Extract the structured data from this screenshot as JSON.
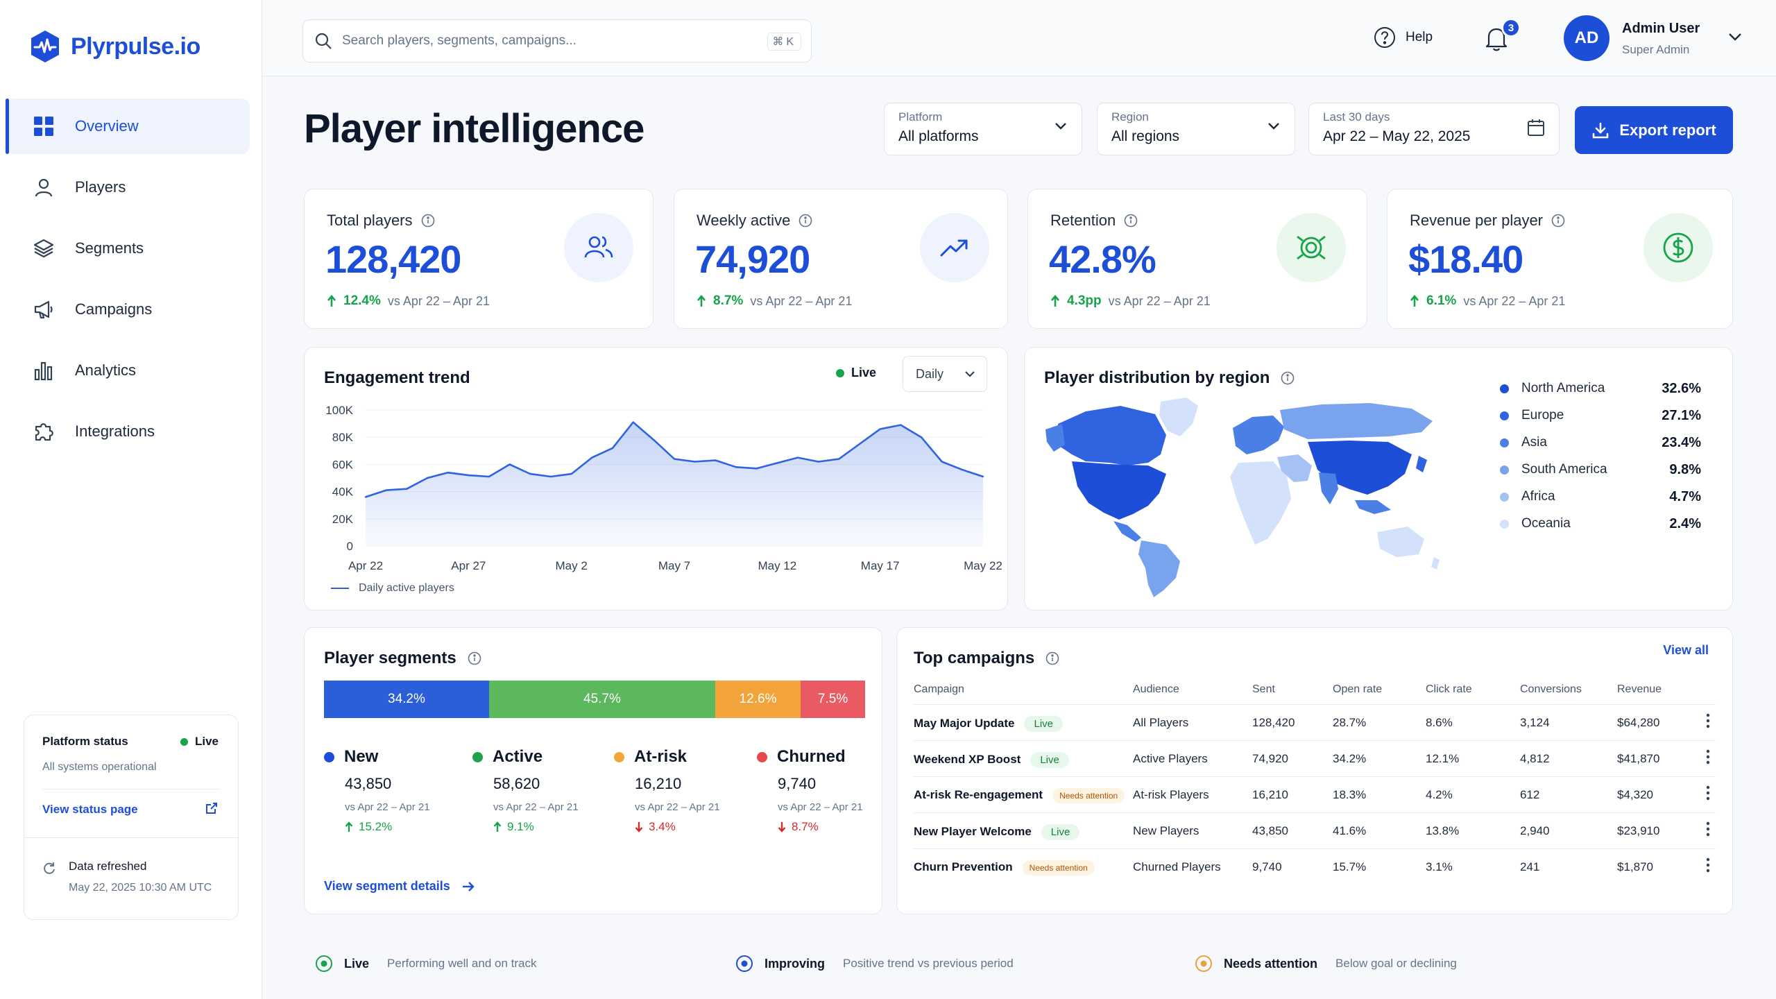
{
  "brand": {
    "name": "Plyrpulse.io",
    "accent": "#1d4ed8"
  },
  "sidebar": {
    "items": [
      {
        "label": "Overview",
        "icon": "grid-icon",
        "active": true
      },
      {
        "label": "Players",
        "icon": "user-icon"
      },
      {
        "label": "Segments",
        "icon": "layers-icon"
      },
      {
        "label": "Campaigns",
        "icon": "megaphone-icon"
      },
      {
        "label": "Analytics",
        "icon": "bar-chart-icon"
      },
      {
        "label": "Integrations",
        "icon": "puzzle-icon"
      }
    ],
    "status": {
      "title": "Platform status",
      "state": "Live",
      "subtitle": "All systems operational",
      "link": "View status page",
      "refreshed_title": "Data refreshed",
      "refreshed_time": "May 22, 2025 10:30 AM UTC"
    }
  },
  "topbar": {
    "search_placeholder": "Search players, segments, campaigns...",
    "shortcut": "⌘K",
    "help": "Help",
    "notifications": "3",
    "user": {
      "initials": "AD",
      "name": "Admin User",
      "role": "Super Admin"
    }
  },
  "header": {
    "title": "Player intelligence",
    "filters": [
      {
        "label": "Platform",
        "value": "All platforms"
      },
      {
        "label": "Region",
        "value": "All regions"
      },
      {
        "label": "Last 30 days",
        "value": "Apr 22 – May 22, 2025"
      }
    ],
    "export": "Export report"
  },
  "kpis": [
    {
      "title": "Total players",
      "value": "128,420",
      "delta": "12.4%",
      "compare": "vs Apr 22 – Apr 21",
      "icon": "users-icon"
    },
    {
      "title": "Weekly active",
      "value": "74,920",
      "delta": "8.7%",
      "compare": "vs Apr 22 – Apr 21",
      "icon": "trend-up-icon"
    },
    {
      "title": "Retention",
      "value": "42.8%",
      "delta": "4.3pp",
      "compare": "vs Apr 22 – Apr 21",
      "icon": "target-icon"
    },
    {
      "title": "Revenue per player",
      "value": "$18.40",
      "delta": "6.1%",
      "compare": "vs Apr 22 – Apr 21",
      "icon": "dollar-icon"
    }
  ],
  "engagement": {
    "title": "Engagement trend",
    "live": "Live",
    "interval": "Daily",
    "legend": "Daily active players"
  },
  "chart_data": {
    "type": "area",
    "x": [
      "Apr 22",
      "Apr 23",
      "Apr 24",
      "Apr 25",
      "Apr 26",
      "Apr 27",
      "Apr 28",
      "Apr 29",
      "Apr 30",
      "May 1",
      "May 2",
      "May 3",
      "May 4",
      "May 5",
      "May 6",
      "May 7",
      "May 8",
      "May 9",
      "May 10",
      "May 11",
      "May 12",
      "May 13",
      "May 14",
      "May 15",
      "May 16",
      "May 17",
      "May 18",
      "May 19",
      "May 20",
      "May 21",
      "May 22"
    ],
    "xticks": [
      "Apr 22",
      "Apr 27",
      "May 2",
      "May 7",
      "May 12",
      "May 17",
      "May 22"
    ],
    "yticks": [
      "100K",
      "80K",
      "60K",
      "40K",
      "20K",
      "0"
    ],
    "series": [
      {
        "name": "Daily active players",
        "values": [
          36000,
          41000,
          42000,
          50000,
          54000,
          52000,
          51000,
          60000,
          53000,
          51000,
          53000,
          65000,
          72000,
          91000,
          78000,
          64000,
          62000,
          63000,
          58000,
          57000,
          61000,
          65000,
          62000,
          64000,
          75000,
          86000,
          89000,
          80000,
          62000,
          56000,
          51000
        ]
      }
    ],
    "ylim": [
      0,
      100000
    ],
    "grid": true
  },
  "regions": {
    "title": "Player distribution by region",
    "items": [
      {
        "name": "North America",
        "pct": "32.6%",
        "color": "#1d4ed8"
      },
      {
        "name": "Europe",
        "pct": "27.1%",
        "color": "#2f63e0"
      },
      {
        "name": "Asia",
        "pct": "23.4%",
        "color": "#4a7fe6"
      },
      {
        "name": "South America",
        "pct": "9.8%",
        "color": "#7aa3ee"
      },
      {
        "name": "Africa",
        "pct": "4.7%",
        "color": "#a6c1f4"
      },
      {
        "name": "Oceania",
        "pct": "2.4%",
        "color": "#d3e1fa"
      }
    ]
  },
  "segments": {
    "title": "Player segments",
    "bar": [
      {
        "label": "34.2%",
        "share": 34.2,
        "color": "#2b5fd9"
      },
      {
        "label": "45.7%",
        "share": 45.7,
        "color": "#5cb85c"
      },
      {
        "label": "12.6%",
        "share": 12.6,
        "color": "#f2a33a"
      },
      {
        "label": "7.5%",
        "share": 7.5,
        "color": "#ea5a63"
      }
    ],
    "items": [
      {
        "name": "New",
        "count": "43,850",
        "compare": "vs Apr 22 – Apr 21",
        "delta": "15.2%",
        "dir": "up",
        "color": "#1d4ed8"
      },
      {
        "name": "Active",
        "count": "58,620",
        "compare": "vs Apr 22 – Apr 21",
        "delta": "9.1%",
        "dir": "up",
        "color": "#22a04b"
      },
      {
        "name": "At-risk",
        "count": "16,210",
        "compare": "vs Apr 22 – Apr 21",
        "delta": "3.4%",
        "dir": "down",
        "color": "#f2a33a"
      },
      {
        "name": "Churned",
        "count": "9,740",
        "compare": "vs Apr 22 – Apr 21",
        "delta": "8.7%",
        "dir": "down",
        "color": "#e5484d"
      }
    ],
    "link": "View segment details"
  },
  "campaigns": {
    "title": "Top campaigns",
    "view_all": "View all",
    "columns": [
      "Campaign",
      "Audience",
      "Sent",
      "Open rate",
      "Click rate",
      "Conversions",
      "Revenue"
    ],
    "rows": [
      {
        "name": "May Major Update",
        "status": "Live",
        "audience": "All Players",
        "sent": "128,420",
        "open": "28.7%",
        "click": "8.6%",
        "conv": "3,124",
        "rev": "$64,280"
      },
      {
        "name": "Weekend XP Boost",
        "status": "Live",
        "audience": "Active Players",
        "sent": "74,920",
        "open": "34.2%",
        "click": "12.1%",
        "conv": "4,812",
        "rev": "$41,870"
      },
      {
        "name": "At-risk Re-engagement",
        "status": "Needs attention",
        "audience": "At-risk Players",
        "sent": "16,210",
        "open": "18.3%",
        "click": "4.2%",
        "conv": "612",
        "rev": "$4,320"
      },
      {
        "name": "New Player Welcome",
        "status": "Live",
        "audience": "New Players",
        "sent": "43,850",
        "open": "41.6%",
        "click": "13.8%",
        "conv": "2,940",
        "rev": "$23,910"
      },
      {
        "name": "Churn Prevention",
        "status": "Needs attention",
        "audience": "Churned Players",
        "sent": "9,740",
        "open": "15.7%",
        "click": "3.1%",
        "conv": "241",
        "rev": "$1,870"
      }
    ]
  },
  "legend": [
    {
      "title": "Live",
      "desc": "Performing well and on track",
      "color": "#16a34a"
    },
    {
      "title": "Improving",
      "desc": "Positive trend vs previous period",
      "color": "#1d4ed8"
    },
    {
      "title": "Needs attention",
      "desc": "Below goal or declining",
      "color": "#e9a23b"
    }
  ]
}
